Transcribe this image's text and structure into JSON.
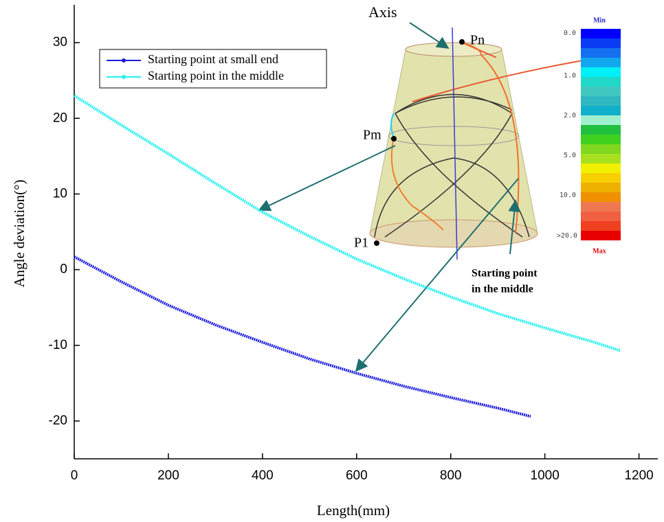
{
  "chart_data": {
    "type": "line",
    "xlabel": "Length(mm)",
    "ylabel": "Angle deviation(°)",
    "xlim": [
      0,
      1240
    ],
    "ylim": [
      -25,
      35
    ],
    "xticks": [
      0,
      200,
      400,
      600,
      800,
      1000,
      1200
    ],
    "yticks": [
      -20,
      -10,
      0,
      10,
      20,
      30
    ],
    "legend": "upper left",
    "series": [
      {
        "name": "Starting point at small end",
        "color": "#1a1adc",
        "x": [
          0,
          100,
          200,
          300,
          400,
          500,
          600,
          700,
          800,
          900,
          970
        ],
        "values": [
          1.7,
          -1.6,
          -4.7,
          -7.3,
          -9.6,
          -11.8,
          -13.7,
          -15.4,
          -16.9,
          -18.3,
          -19.4
        ]
      },
      {
        "name": "Starting point in the middle",
        "color": "#22f0f0",
        "x": [
          0,
          100,
          200,
          300,
          400,
          500,
          600,
          700,
          800,
          900,
          1000,
          1100,
          1160
        ],
        "values": [
          23,
          19.1,
          15.3,
          11.4,
          7.6,
          4.4,
          1.4,
          -1.2,
          -3.6,
          -5.8,
          -7.7,
          -9.5,
          -10.7
        ]
      }
    ],
    "annotations": [
      "Axis",
      "Pn",
      "Pm",
      "P1",
      "Starting point",
      "in the middle"
    ],
    "colorbar": {
      "labels": [
        "0.0",
        "1.0",
        "2.0",
        "5.0",
        "10.0",
        ">20.0"
      ],
      "min_label": "Min",
      "max_label": "Max"
    }
  }
}
